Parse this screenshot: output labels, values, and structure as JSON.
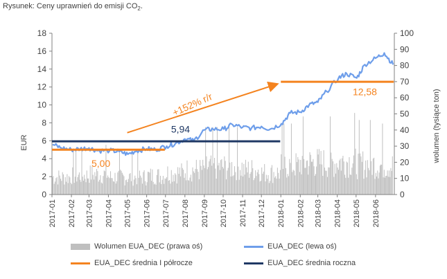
{
  "caption": {
    "prefix": "Rysunek: Ceny uprawnień do emisji CO",
    "sub": "2",
    "suffix": "."
  },
  "colors": {
    "price": "#6e9eea",
    "volume": "#bfbfbf",
    "half_year": "#f4831f",
    "annual": "#1f3864",
    "annotation": "#f4831f"
  },
  "chart_data": {
    "type": "line",
    "ylabel_left": "EUR",
    "ylabel_right": "wolumen (tysiące ton)",
    "ylim_left": [
      0,
      18
    ],
    "ylim_right": [
      0,
      100
    ],
    "yticks_left": [
      "0",
      "2",
      "4",
      "6",
      "8",
      "10",
      "12",
      "14",
      "16",
      "18"
    ],
    "yticks_right": [
      "0",
      "10",
      "20",
      "30",
      "40",
      "50",
      "60",
      "70",
      "80",
      "90",
      "100"
    ],
    "xticks": [
      "2017-01",
      "2017-02",
      "2017-03",
      "2017-04",
      "2017-05",
      "2017-06",
      "2017-07",
      "2017-08",
      "2017-09",
      "2017-10",
      "2017-11",
      "2017-12",
      "2018-01",
      "2018-02",
      "2018-03",
      "2018-04",
      "2018-05",
      "2018-06"
    ],
    "series": [
      {
        "name": "EUA_DEC (lewa oś)",
        "axis": "left",
        "x": [
          "2017-01-02",
          "2017-01-16",
          "2017-02-01",
          "2017-02-15",
          "2017-03-01",
          "2017-03-15",
          "2017-04-03",
          "2017-04-18",
          "2017-05-02",
          "2017-05-16",
          "2017-06-01",
          "2017-06-15",
          "2017-07-03",
          "2017-07-17",
          "2017-08-01",
          "2017-08-15",
          "2017-09-01",
          "2017-09-15",
          "2017-10-02",
          "2017-10-16",
          "2017-11-01",
          "2017-11-15",
          "2017-12-01",
          "2017-12-15",
          "2018-01-02",
          "2018-01-16",
          "2018-02-01",
          "2018-02-15",
          "2018-03-01",
          "2018-03-15",
          "2018-04-03",
          "2018-04-16",
          "2018-05-02",
          "2018-05-15",
          "2018-06-01",
          "2018-06-15",
          "2018-06-29"
        ],
        "values": [
          5.6,
          5.2,
          5.0,
          5.1,
          5.2,
          4.9,
          4.9,
          4.8,
          4.5,
          4.9,
          5.1,
          5.0,
          5.4,
          5.7,
          6.2,
          6.0,
          7.2,
          7.3,
          7.3,
          7.8,
          7.5,
          7.4,
          7.6,
          7.3,
          7.9,
          9.1,
          9.2,
          10.0,
          10.3,
          11.5,
          13.0,
          13.5,
          13.0,
          14.5,
          15.2,
          15.8,
          14.5
        ]
      },
      {
        "name": "Wolumen EUA_DEC (prawa oś)",
        "axis": "right",
        "type": "bar",
        "x": [
          "2017-01",
          "2017-02",
          "2017-03",
          "2017-04",
          "2017-05",
          "2017-06",
          "2017-07",
          "2017-08",
          "2017-09",
          "2017-10",
          "2017-11",
          "2017-12",
          "2018-01",
          "2018-02",
          "2018-03",
          "2018-04",
          "2018-05",
          "2018-06"
        ],
        "values": [
          12,
          13,
          14,
          12,
          12,
          13,
          15,
          17,
          19,
          19,
          17,
          15,
          20,
          22,
          22,
          23,
          21,
          20
        ]
      },
      {
        "name": "EUA_DEC średnia I półrocze",
        "axis": "left",
        "segments": [
          {
            "x": [
              "2017-01-01",
              "2017-06-30"
            ],
            "value": 5.0
          },
          {
            "x": [
              "2018-01-01",
              "2018-06-30"
            ],
            "value": 12.58
          }
        ]
      },
      {
        "name": "EUA_DEC średnia roczna",
        "axis": "left",
        "segments": [
          {
            "x": [
              "2017-01-01",
              "2017-12-31"
            ],
            "value": 5.94
          }
        ]
      }
    ],
    "annotations": {
      "half_2017": "5,00",
      "half_2018": "12,58",
      "annual_2017": "5,94",
      "growth": "+152% r/r"
    },
    "grid": false,
    "legend": "bottom"
  }
}
